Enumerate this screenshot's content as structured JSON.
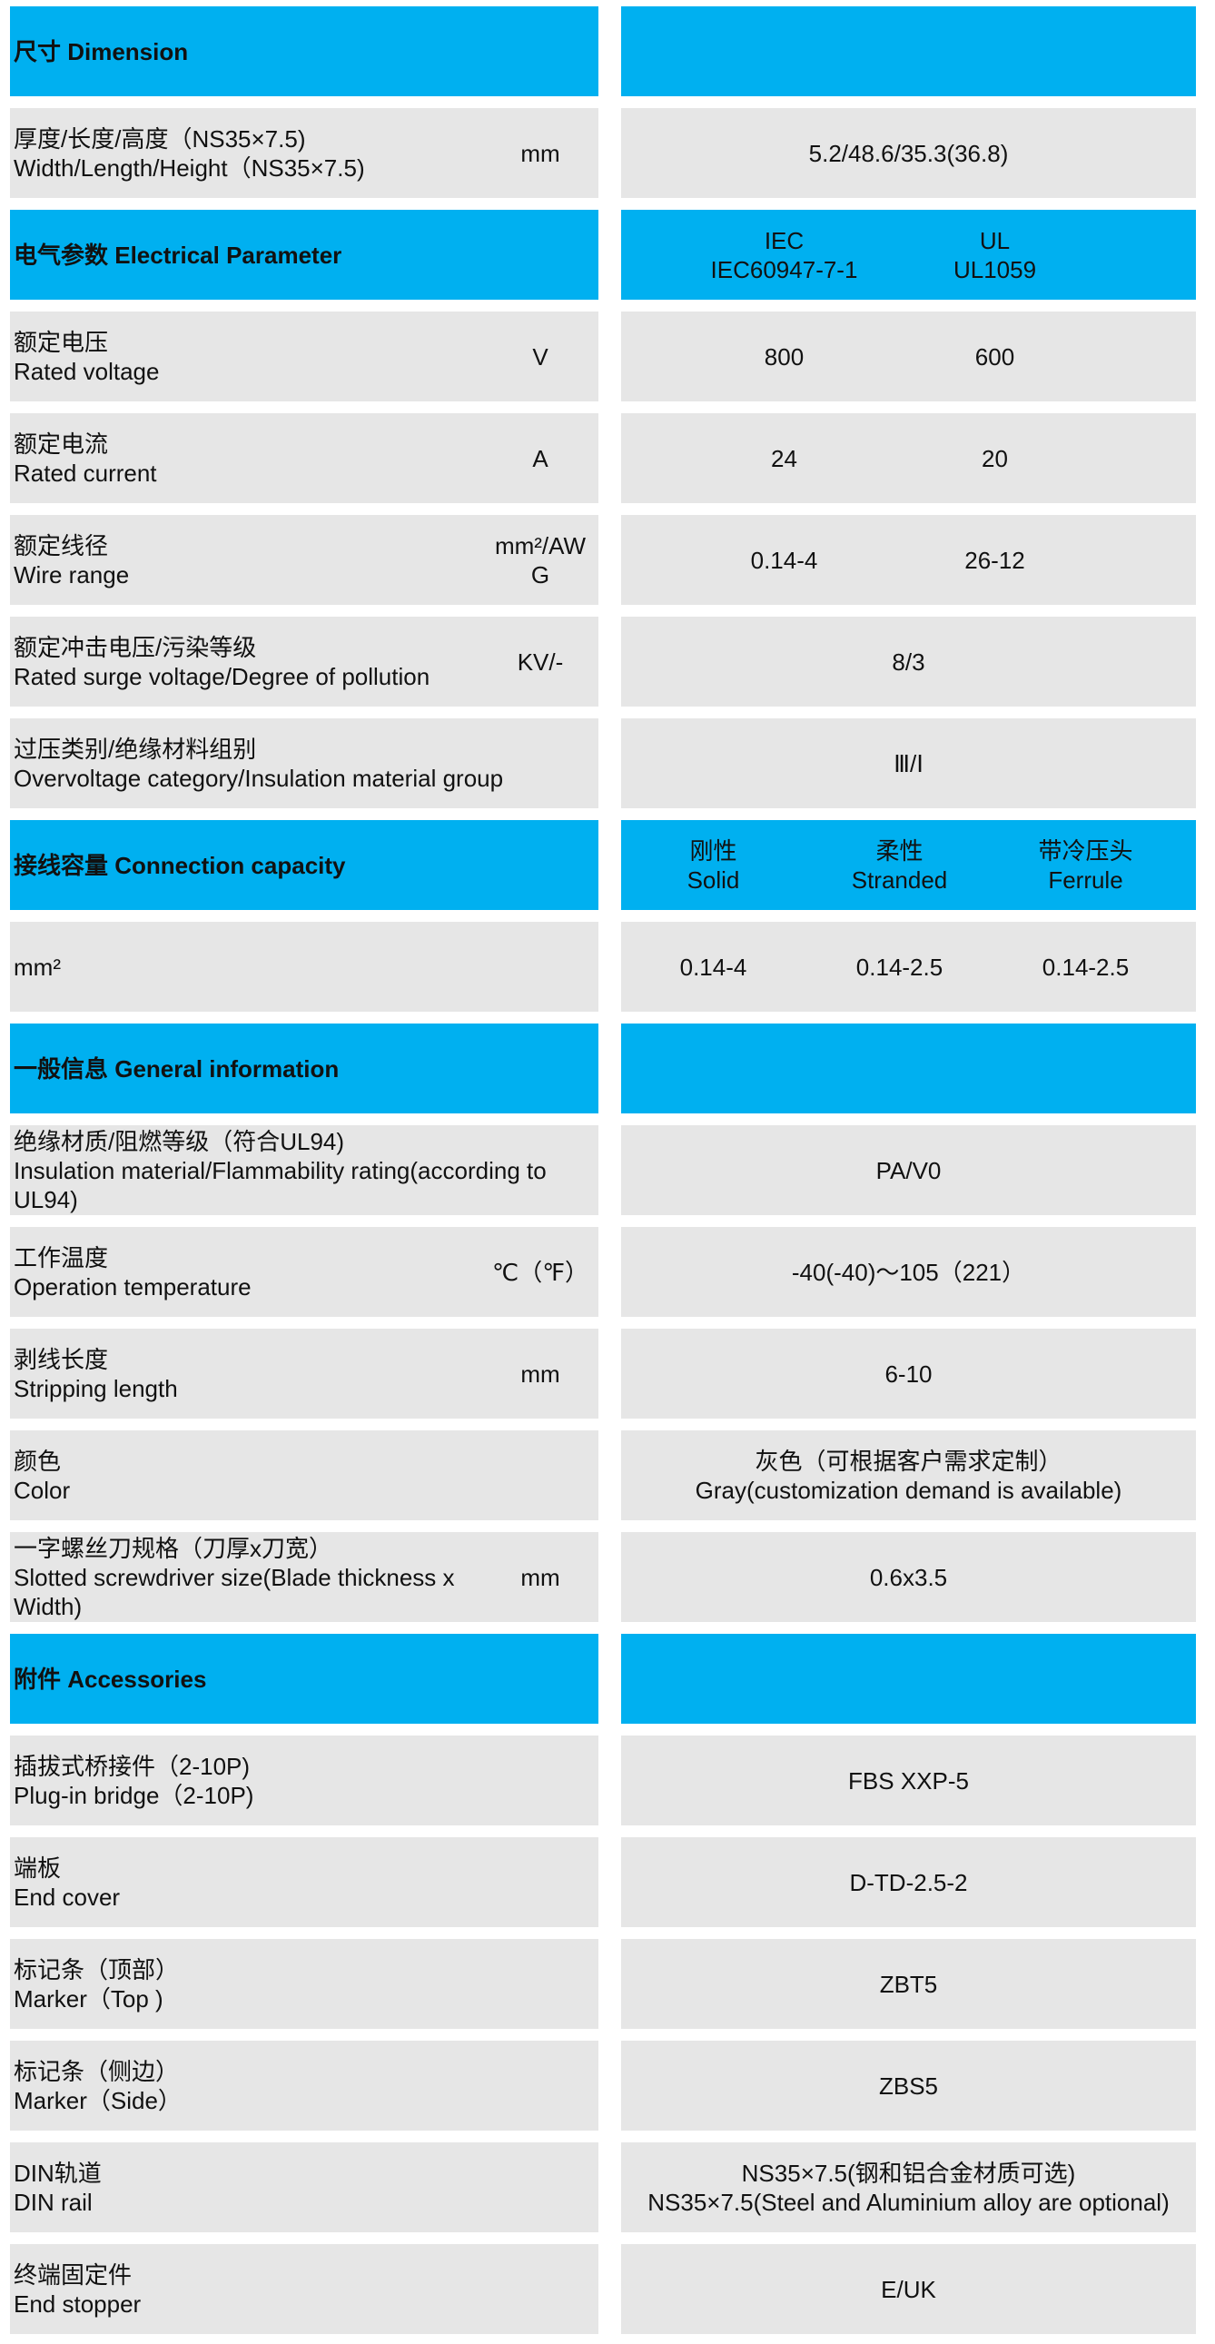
{
  "colors": {
    "header_bg": "#00b0f0",
    "cell_bg": "#e6e6e6"
  },
  "rows": [
    {
      "type": "header",
      "label": [
        "尺寸 Dimension"
      ],
      "values": []
    },
    {
      "type": "data",
      "label": [
        "厚度/长度/高度（NS35×7.5)",
        "Width/Length/Height（NS35×7.5)"
      ],
      "unit": "mm",
      "values": [
        [
          "5.2/48.6/35.3(36.8)"
        ]
      ]
    },
    {
      "type": "header",
      "label": [
        "电气参数 Electrical Parameter"
      ],
      "values": [
        [
          "IEC",
          "IEC60947-7-1"
        ],
        [
          "UL",
          "UL1059"
        ]
      ]
    },
    {
      "type": "data",
      "label": [
        "额定电压",
        "Rated voltage"
      ],
      "unit": "V",
      "values": [
        [
          "800"
        ],
        [
          "600"
        ]
      ]
    },
    {
      "type": "data",
      "label": [
        "额定电流",
        "Rated current"
      ],
      "unit": "A",
      "values": [
        [
          "24"
        ],
        [
          "20"
        ]
      ]
    },
    {
      "type": "data",
      "label": [
        "额定线径",
        "Wire range"
      ],
      "unit": "mm²/AWG",
      "values": [
        [
          "0.14-4"
        ],
        [
          "26-12"
        ]
      ]
    },
    {
      "type": "data",
      "label": [
        "额定冲击电压/污染等级",
        "Rated surge voltage/Degree of pollution"
      ],
      "unit": "KV/-",
      "values": [
        [
          "8/3"
        ]
      ]
    },
    {
      "type": "data",
      "label": [
        "过压类别/绝缘材料组别",
        "Overvoltage category/Insulation material group"
      ],
      "values": [
        [
          "Ⅲ/Ⅰ"
        ]
      ]
    },
    {
      "type": "header",
      "label": [
        "接线容量 Connection capacity"
      ],
      "values": [
        [
          "刚性",
          "Solid"
        ],
        [
          "柔性",
          "Stranded"
        ],
        [
          "带冷压头",
          "Ferrule"
        ]
      ]
    },
    {
      "type": "data",
      "label": [
        "mm²"
      ],
      "values": [
        [
          "0.14-4"
        ],
        [
          "0.14-2.5"
        ],
        [
          "0.14-2.5"
        ]
      ]
    },
    {
      "type": "header",
      "label": [
        "一般信息 General information"
      ],
      "values": []
    },
    {
      "type": "data",
      "label": [
        "绝缘材质/阻燃等级（符合UL94)",
        "Insulation material/Flammability rating(according to UL94)"
      ],
      "values": [
        [
          "PA/V0"
        ]
      ]
    },
    {
      "type": "data",
      "label": [
        "工作温度",
        "Operation temperature"
      ],
      "unit": "℃（℉）",
      "values": [
        [
          "-40(-40)～105（221）"
        ]
      ]
    },
    {
      "type": "data",
      "label": [
        "剥线长度",
        "Stripping length"
      ],
      "unit": "mm",
      "values": [
        [
          "6-10"
        ]
      ]
    },
    {
      "type": "data",
      "label": [
        "颜色",
        "Color"
      ],
      "values": [
        [
          "灰色（可根据客户需求定制）",
          "Gray(customization demand is available)"
        ]
      ]
    },
    {
      "type": "data",
      "label": [
        "一字螺丝刀规格（刀厚x刀宽）",
        "Slotted screwdriver size(Blade thickness x Width)"
      ],
      "unit": "mm",
      "values": [
        [
          "0.6x3.5"
        ]
      ]
    },
    {
      "type": "header",
      "label": [
        "附件 Accessories"
      ],
      "values": []
    },
    {
      "type": "data",
      "label": [
        "插拔式桥接件（2-10P)",
        "Plug-in bridge（2-10P)"
      ],
      "values": [
        [
          "FBS XXP-5"
        ]
      ]
    },
    {
      "type": "data",
      "label": [
        "端板",
        "End cover"
      ],
      "values": [
        [
          "D-TD-2.5-2"
        ]
      ]
    },
    {
      "type": "data",
      "label": [
        "标记条（顶部）",
        "Marker（Top )"
      ],
      "values": [
        [
          "ZBT5"
        ]
      ]
    },
    {
      "type": "data",
      "label": [
        "标记条（侧边）",
        "Marker（Side）"
      ],
      "values": [
        [
          "ZBS5"
        ]
      ]
    },
    {
      "type": "data",
      "label": [
        "DIN轨道",
        "DIN rail"
      ],
      "values": [
        [
          "NS35×7.5(钢和铝合金材质可选)",
          "NS35×7.5(Steel and Aluminium alloy are optional)"
        ]
      ]
    },
    {
      "type": "data",
      "label": [
        "终端固定件",
        "End stopper"
      ],
      "values": [
        [
          "E/UK"
        ]
      ]
    }
  ]
}
